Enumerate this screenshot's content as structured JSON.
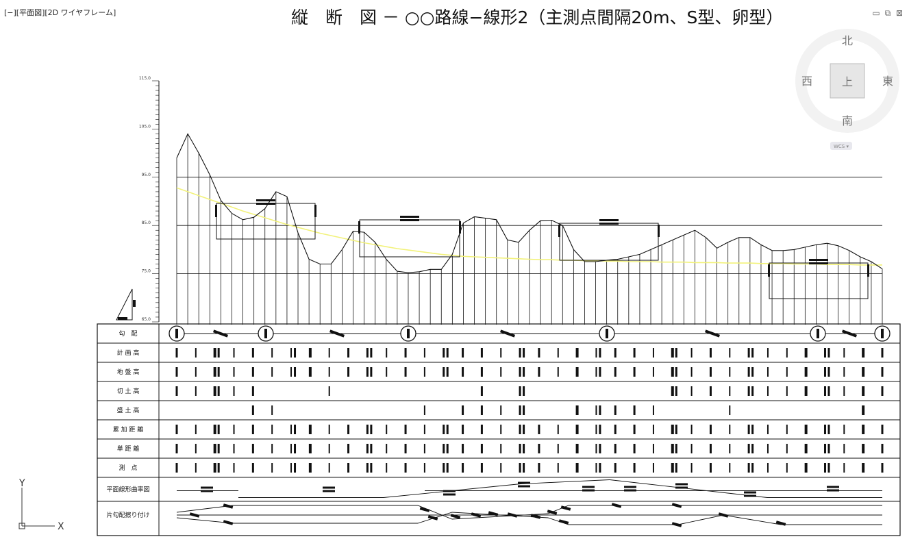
{
  "viewport": {
    "label": "[−][平面図][2D ワイヤフレーム]"
  },
  "drawing": {
    "title": "縦　断　図 － ○○路線−線形2（主測点間隔20m、S型、卵型）"
  },
  "window_controls": {
    "minimize": "▭",
    "restore": "⧉",
    "close": "⊠"
  },
  "viewcube": {
    "north": "北",
    "south": "南",
    "east": "東",
    "west": "西",
    "top": "上",
    "wcs": "WCS ▾"
  },
  "ucs": {
    "y": "Y",
    "x": "X"
  },
  "chart_data": {
    "type": "line",
    "title": "",
    "xlabel": "",
    "ylabel": "",
    "y_ticks": [
      "115.0",
      "105.0",
      "95.0",
      "85.0",
      "75.0",
      "65.0"
    ],
    "ylim": [
      65,
      115
    ],
    "x": [
      0,
      1,
      2,
      3,
      4,
      5,
      6,
      7,
      8,
      9,
      10,
      11,
      12,
      13,
      14,
      15,
      16,
      17,
      18,
      19,
      20,
      21,
      22,
      23,
      24,
      25,
      26,
      27,
      28,
      29,
      30,
      31,
      32,
      33,
      34,
      35,
      36,
      37,
      38,
      39,
      40,
      41,
      42,
      43,
      44,
      45,
      46,
      47,
      48,
      49,
      50,
      51,
      52,
      53,
      54,
      55,
      56,
      57,
      58,
      59,
      60,
      61,
      62,
      63,
      64
    ],
    "series": [
      {
        "name": "",
        "values": [
          99,
          104,
          100,
          95.5,
          90.2,
          87.5,
          86.2,
          86.7,
          88.5,
          92.0,
          91.0,
          83.5,
          78.0,
          77.0,
          77.0,
          80.0,
          83.8,
          83.6,
          81.5,
          78.0,
          75.5,
          75.2,
          75.4,
          75.9,
          75.9,
          79.0,
          85.5,
          86.8,
          86.5,
          86.2,
          82.0,
          81.5,
          84.0,
          86.0,
          86.1,
          85.0,
          80.0,
          77.5,
          77.5,
          77.8,
          78.0,
          78.5,
          79.0,
          80.0,
          81.0,
          82.0,
          83.0,
          84.0,
          82.5,
          80.3,
          81.5,
          82.5,
          82.5,
          81.0,
          79.8,
          79.8,
          80.0,
          80.5,
          81.0,
          81.3,
          80.8,
          79.8,
          78.5,
          77.5,
          76.0
        ]
      },
      {
        "name": "",
        "values": [
          92.8,
          92.0,
          91.2,
          90.4,
          89.6,
          88.8,
          88.0,
          87.3,
          86.6,
          85.9,
          85.2,
          84.6,
          84.0,
          83.4,
          82.9,
          82.4,
          81.9,
          81.4,
          81.0,
          80.6,
          80.2,
          79.9,
          79.6,
          79.3,
          79.0,
          78.8,
          78.6,
          78.5,
          78.4,
          78.3,
          78.2,
          78.1,
          78.0,
          77.9,
          77.9,
          77.8,
          77.8,
          77.7,
          77.7,
          77.6,
          77.6,
          77.5,
          77.5,
          77.5,
          77.4,
          77.4,
          77.4,
          77.3,
          77.3,
          77.3,
          77.2,
          77.2,
          77.2,
          77.1,
          77.1,
          77.1,
          77.0,
          77.0,
          77.0,
          76.9,
          76.9,
          76.9,
          76.8,
          76.8,
          76.8
        ]
      }
    ]
  },
  "table": {
    "rows": [
      "勾　配",
      "計 画 高",
      "地 盤 高",
      "切 土 高",
      "盛 土 高",
      "累 加 距 離",
      "単 距 離",
      "測　点",
      "平面線形曲率図",
      "片勾配擦り付け"
    ]
  },
  "colors": {
    "line": "#111111",
    "planned_grade": "#f2f27a",
    "viewcube": "#dcdcdc",
    "viewcube_top": "#e8e8e8"
  }
}
